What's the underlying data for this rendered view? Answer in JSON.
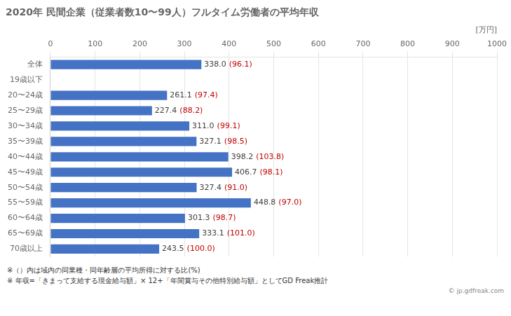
{
  "chart_data": {
    "type": "bar",
    "orientation": "horizontal",
    "title": "2020年 民間企業（従業者数10〜99人）フルタイム労働者の平均年収",
    "xlabel": "[万円]",
    "categories": [
      "全体",
      "19歳以下",
      "20〜24歳",
      "25〜29歳",
      "30〜34歳",
      "35〜39歳",
      "40〜44歳",
      "45〜49歳",
      "50〜54歳",
      "55〜59歳",
      "60〜64歳",
      "65〜69歳",
      "70歳以上"
    ],
    "values": [
      338.0,
      0,
      261.1,
      227.4,
      311.0,
      327.1,
      398.2,
      406.7,
      327.4,
      448.8,
      301.3,
      333.1,
      243.5
    ],
    "value_labels": [
      "338.0",
      null,
      "261.1",
      "227.4",
      "311.0",
      "327.1",
      "398.2",
      "406.7",
      "327.4",
      "448.8",
      "301.3",
      "333.1",
      "243.5"
    ],
    "data_labels": true,
    "annotations": {
      "labels": [
        "(96.1)",
        null,
        "(97.4)",
        "(88.2)",
        "(99.1)",
        "(98.5)",
        "(103.8)",
        "(98.1)",
        "(91.0)",
        "(97.0)",
        "(98.7)",
        "(101.0)",
        "(100.0)"
      ],
      "color": "#C00000"
    },
    "color": "#4472C4",
    "xlim": [
      0,
      1000
    ],
    "xticks": [
      0,
      100,
      200,
      300,
      400,
      500,
      600,
      700,
      800,
      900,
      1000
    ],
    "grid": true,
    "footnotes": [
      "※（）内は域内の同業種・同年齢層の平均所得に対する比(%)",
      "※ 年収=「きまって支給する現金給与額」× 12+「年間賞与その他特別給与額」としてGD Freak推計"
    ],
    "watermark": "© jp.gdfreak.com"
  }
}
